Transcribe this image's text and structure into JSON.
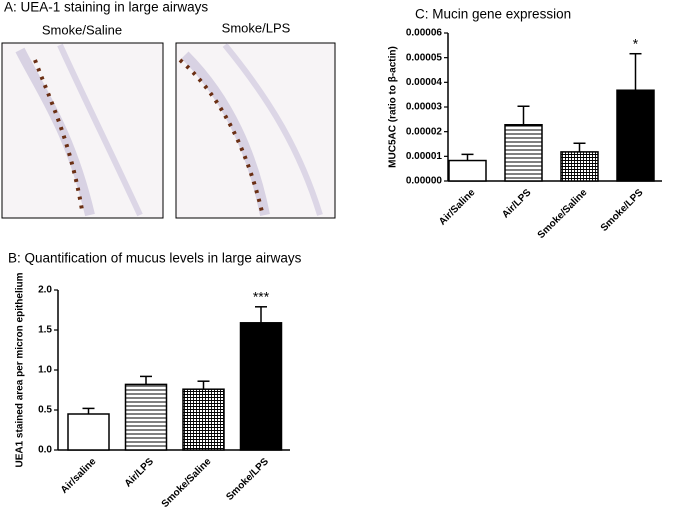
{
  "panel_a": {
    "title": "A: UEA-1 staining in large airways",
    "images": [
      {
        "label": "Smoke/Saline"
      },
      {
        "label": "Smoke/LPS"
      }
    ]
  },
  "chart_data": [
    {
      "type": "bar",
      "title": "C: Mucin gene expression",
      "y_label": "MUC5AC (ratio to β-actin)",
      "categories": [
        "Air/Saline",
        "Air/LPS",
        "Smoke/Saline",
        "Smoke/LPS"
      ],
      "values": [
        8.3e-06,
        2.28e-05,
        1.18e-05,
        3.68e-05
      ],
      "errors": [
        2.5e-06,
        7.5e-06,
        3.5e-06,
        1.48e-05
      ],
      "patterns": [
        "none",
        "horizontal",
        "grid",
        "solid"
      ],
      "annotations": [
        null,
        null,
        null,
        "*"
      ],
      "ylim": [
        0,
        6e-05
      ],
      "yticks": [
        {
          "value": 0,
          "label": "0.00000"
        },
        {
          "value": 1e-05,
          "label": "0.00001"
        },
        {
          "value": 2e-05,
          "label": "0.00002"
        },
        {
          "value": 3e-05,
          "label": "0.00003"
        },
        {
          "value": 4e-05,
          "label": "0.00004"
        },
        {
          "value": 5e-05,
          "label": "0.00005"
        },
        {
          "value": 6e-05,
          "label": "0.00006"
        }
      ],
      "grid": false
    },
    {
      "type": "bar",
      "title": "B: Quantification of mucus levels in large airways",
      "y_label": "UEA1 stained area per micron epithelium",
      "categories": [
        "Air/saline",
        "Air/LPS",
        "Smoke/Saline",
        "Smoke/LPS"
      ],
      "values": [
        0.45,
        0.82,
        0.76,
        1.59
      ],
      "errors": [
        0.07,
        0.1,
        0.1,
        0.2
      ],
      "patterns": [
        "none",
        "horizontal",
        "grid",
        "solid"
      ],
      "annotations": [
        null,
        null,
        null,
        "***"
      ],
      "ylim": [
        0,
        2
      ],
      "yticks": [
        {
          "value": 0,
          "label": "0.0"
        },
        0.5,
        {
          "value": 1,
          "label": "1.0"
        },
        1.5,
        {
          "value": 2,
          "label": "2.0"
        }
      ],
      "grid": false
    }
  ]
}
